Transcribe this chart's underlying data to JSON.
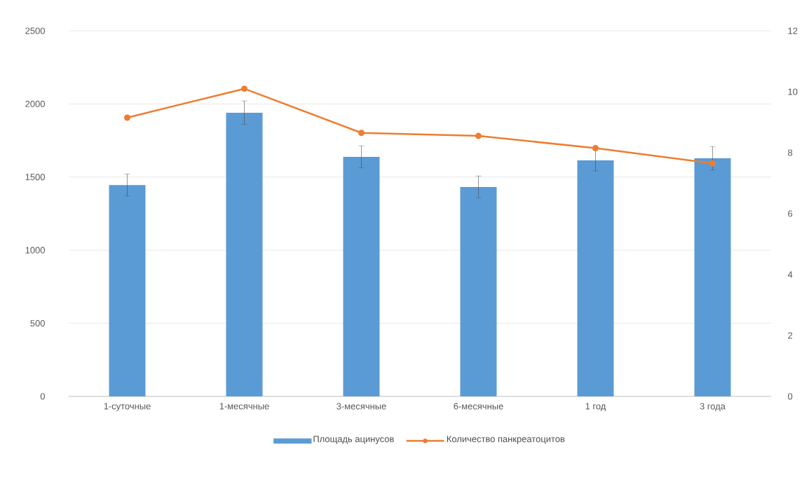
{
  "chart_data": {
    "type": "bar",
    "categories": [
      "1-суточные",
      "1-месячные",
      "3-месячные",
      "6-месячные",
      "1 год",
      "3 года"
    ],
    "series": [
      {
        "name": "Площадь ацинусов",
        "color": "#5b9bd5",
        "values": [
          1445,
          1940,
          1638,
          1432,
          1614,
          1628
        ],
        "errors": [
          75,
          80,
          75,
          75,
          72,
          80
        ]
      },
      {
        "name": "Количество панкреатоцитов",
        "type": "line",
        "axis": "y2",
        "color": "#ed7d31",
        "marker": "circle",
        "values": [
          9.15,
          10.1,
          8.65,
          8.55,
          8.15,
          7.65
        ]
      }
    ],
    "ylim": [
      0,
      2500
    ],
    "yticks": [
      0,
      500,
      1000,
      1500,
      2000,
      2500
    ],
    "y2lim": [
      0,
      12
    ],
    "y2ticks": [
      0,
      2,
      4,
      6,
      8,
      10,
      12
    ],
    "grid": "y",
    "legend": "bottom"
  }
}
